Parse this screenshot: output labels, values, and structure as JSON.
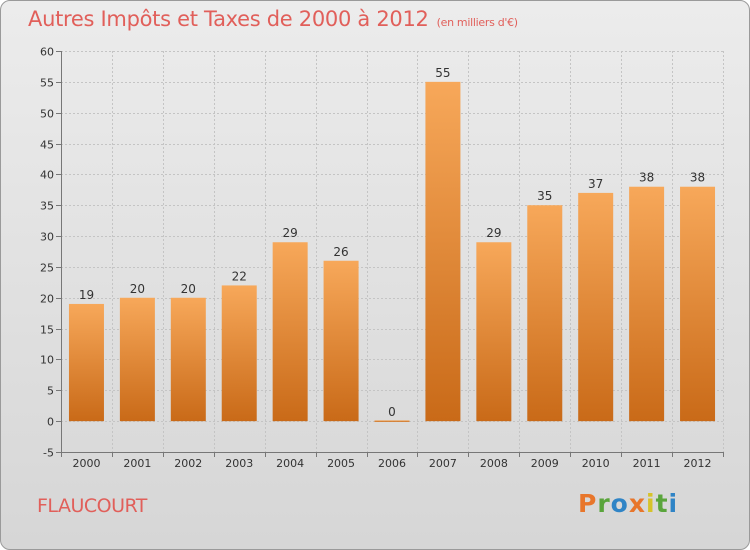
{
  "title": "Autres Impôts et Taxes de 2000 à 2012",
  "unit": "(en milliers d'€)",
  "place": "FLAUCOURT",
  "logo": "Proxiti",
  "logo_colors": [
    "#e8762b",
    "#5aa53c",
    "#2f84c6",
    "#e8762b",
    "#d6c32a",
    "#5aa53c",
    "#2f84c6"
  ],
  "colors": {
    "bar_top": "#f7a85a",
    "bar_bottom": "#c96a18",
    "title": "#e15f5a"
  },
  "chart_data": {
    "type": "bar",
    "title": "Autres Impôts et Taxes de 2000 à 2012",
    "unit": "(en milliers d'€)",
    "categories": [
      "2000",
      "2001",
      "2002",
      "2003",
      "2004",
      "2005",
      "2006",
      "2007",
      "2008",
      "2009",
      "2010",
      "2011",
      "2012"
    ],
    "values": [
      19,
      20,
      20,
      22,
      29,
      26,
      0,
      55,
      29,
      35,
      37,
      38,
      38
    ],
    "data_labels": [
      "19",
      "20",
      "20",
      "22",
      "29",
      "26",
      "0",
      "55",
      "29",
      "35",
      "37",
      "38",
      "38"
    ],
    "ylim": [
      -5,
      60
    ],
    "yticks": [
      -5,
      0,
      5,
      10,
      15,
      20,
      25,
      30,
      35,
      40,
      45,
      50,
      55,
      60
    ],
    "grid": true
  }
}
